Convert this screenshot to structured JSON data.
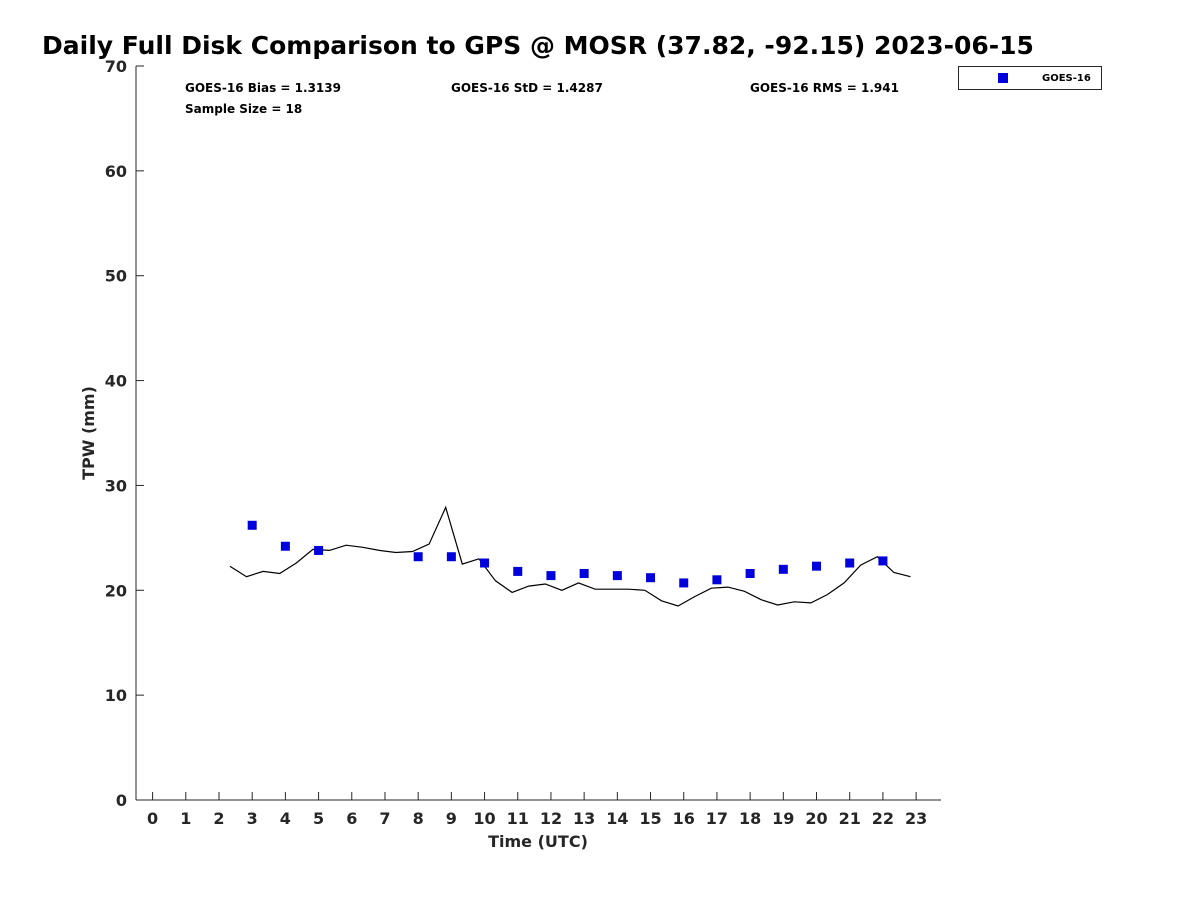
{
  "chart_data": {
    "type": "scatter",
    "title": "Daily Full Disk Comparison to GPS @ MOSR (37.82, -92.15) 2023-06-15",
    "xlabel": "Time (UTC)",
    "ylabel": "TPW (mm)",
    "xlim": [
      -0.5,
      23.75
    ],
    "ylim": [
      0,
      70
    ],
    "x_ticks": [
      0,
      1,
      2,
      3,
      4,
      5,
      6,
      7,
      8,
      9,
      10,
      11,
      12,
      13,
      14,
      15,
      16,
      17,
      18,
      19,
      20,
      21,
      22,
      23
    ],
    "y_ticks": [
      0,
      10,
      20,
      30,
      40,
      50,
      60,
      70
    ],
    "grid": false,
    "legend": {
      "position": "top-right-outside",
      "entries": [
        "GOES-16"
      ]
    },
    "stats": {
      "bias": "GOES-16 Bias = 1.3139",
      "std": "GOES-16 StD = 1.4287",
      "rms": "GOES-16 RMS = 1.941",
      "sample_size": "Sample Size = 18"
    },
    "series": [
      {
        "name": "GOES-16",
        "kind": "scatter",
        "marker": "square",
        "color": "#0000dd",
        "x": [
          3,
          4,
          5,
          8,
          9,
          10,
          11,
          12,
          13,
          14,
          15,
          16,
          17,
          18,
          19,
          20,
          21,
          22
        ],
        "y": [
          26.2,
          24.2,
          23.8,
          23.2,
          23.2,
          22.6,
          21.8,
          21.4,
          21.6,
          21.4,
          21.2,
          20.7,
          21.0,
          21.6,
          22.0,
          22.3,
          22.6,
          22.8
        ]
      },
      {
        "kind": "line",
        "color": "#000000",
        "x": [
          2.33,
          2.83,
          3.33,
          3.83,
          4.33,
          4.83,
          5.33,
          5.83,
          6.33,
          6.83,
          7.33,
          7.83,
          8.33,
          8.83,
          9.33,
          9.83,
          10.33,
          10.83,
          11.33,
          11.83,
          12.33,
          12.83,
          13.33,
          13.83,
          14.33,
          14.83,
          15.33,
          15.83,
          16.33,
          16.83,
          17.33,
          17.83,
          18.33,
          18.83,
          19.33,
          19.83,
          20.33,
          20.83,
          21.33,
          21.83,
          22.33,
          22.83
        ],
        "y": [
          22.3,
          21.3,
          21.8,
          21.6,
          22.6,
          23.9,
          23.8,
          24.3,
          24.1,
          23.8,
          23.6,
          23.7,
          24.4,
          27.9,
          22.5,
          23.0,
          20.9,
          19.8,
          20.4,
          20.6,
          20.0,
          20.7,
          20.1,
          20.1,
          20.1,
          20.0,
          19.0,
          18.5,
          19.4,
          20.2,
          20.3,
          19.9,
          19.1,
          18.6,
          18.9,
          18.8,
          19.6,
          20.7,
          22.4,
          23.2,
          21.7,
          21.3
        ]
      }
    ]
  },
  "colors": {
    "marker": "#0000dd",
    "line": "#000000",
    "axis": "#262626"
  }
}
